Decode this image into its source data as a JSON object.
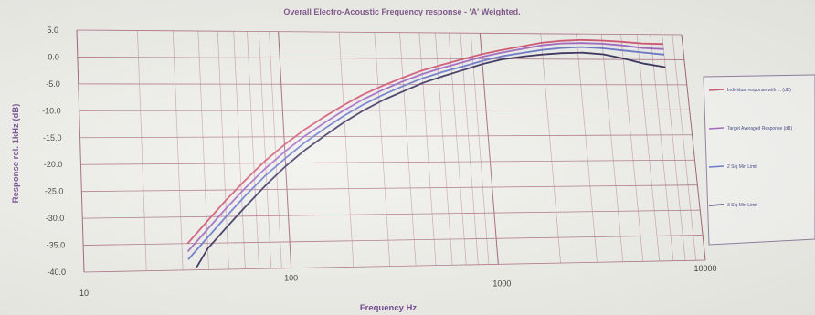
{
  "chart_data": {
    "type": "line",
    "title": "Overall Electro-Acoustic Frequency response - 'A' Weighted.",
    "xlabel": "Frequency Hz",
    "ylabel": "Response rel. 1kHz (dB)",
    "xscale": "log",
    "xlim": [
      10,
      10000
    ],
    "ylim": [
      -40,
      5
    ],
    "x_ticks": [
      "10",
      "100",
      "1000",
      "10000"
    ],
    "y_ticks": [
      "5.0",
      "0.0",
      "-5.0",
      "-10.0",
      "-15.0",
      "-20.0",
      "-25.0",
      "-30.0",
      "-35.0",
      "-40.0"
    ],
    "grid": true,
    "legend_position": "right",
    "series": [
      {
        "name": "Individual response with ... (dB)",
        "color": "#d04a6a",
        "points": [
          [
            32,
            -35
          ],
          [
            40,
            -31
          ],
          [
            50,
            -27
          ],
          [
            63,
            -23.2
          ],
          [
            80,
            -19.5
          ],
          [
            100,
            -16.5
          ],
          [
            125,
            -13.8
          ],
          [
            160,
            -11.2
          ],
          [
            200,
            -9
          ],
          [
            250,
            -7
          ],
          [
            315,
            -5.3
          ],
          [
            400,
            -3.7
          ],
          [
            500,
            -2.3
          ],
          [
            630,
            -1.2
          ],
          [
            800,
            -0.1
          ],
          [
            1000,
            0.9
          ],
          [
            1250,
            1.7
          ],
          [
            1600,
            2.5
          ],
          [
            2000,
            3.2
          ],
          [
            2500,
            3.6
          ],
          [
            3150,
            3.8
          ],
          [
            4000,
            3.7
          ],
          [
            5000,
            3.5
          ],
          [
            6300,
            3.2
          ],
          [
            8000,
            3.1
          ]
        ]
      },
      {
        "name": "Target Averaged Response (dB)",
        "color": "#9a5fbf",
        "points": [
          [
            32,
            -36.5
          ],
          [
            40,
            -32.5
          ],
          [
            50,
            -28.5
          ],
          [
            63,
            -24.6
          ],
          [
            80,
            -20.9
          ],
          [
            100,
            -17.8
          ],
          [
            125,
            -15
          ],
          [
            160,
            -12.3
          ],
          [
            200,
            -10
          ],
          [
            250,
            -7.9
          ],
          [
            315,
            -6.1
          ],
          [
            400,
            -4.4
          ],
          [
            500,
            -3
          ],
          [
            630,
            -1.8
          ],
          [
            800,
            -0.7
          ],
          [
            1000,
            0.4
          ],
          [
            1250,
            1.2
          ],
          [
            1600,
            2
          ],
          [
            2000,
            2.7
          ],
          [
            2500,
            3.1
          ],
          [
            3150,
            3.2
          ],
          [
            4000,
            3.1
          ],
          [
            5000,
            2.8
          ],
          [
            6300,
            2.3
          ],
          [
            8000,
            2.1
          ]
        ]
      },
      {
        "name": "2 Sig Min Limit",
        "color": "#6070c8",
        "points": [
          [
            32,
            -38
          ],
          [
            40,
            -34
          ],
          [
            50,
            -30
          ],
          [
            63,
            -26
          ],
          [
            80,
            -22.2
          ],
          [
            100,
            -19.1
          ],
          [
            125,
            -16.2
          ],
          [
            160,
            -13.4
          ],
          [
            200,
            -11
          ],
          [
            250,
            -8.9
          ],
          [
            315,
            -7
          ],
          [
            400,
            -5.3
          ],
          [
            500,
            -3.8
          ],
          [
            630,
            -2.6
          ],
          [
            800,
            -1.5
          ],
          [
            1000,
            -0.4
          ],
          [
            1250,
            0.5
          ],
          [
            1600,
            1.2
          ],
          [
            2000,
            1.8
          ],
          [
            2500,
            2.2
          ],
          [
            3150,
            2.4
          ],
          [
            4000,
            2.2
          ],
          [
            5000,
            1.8
          ],
          [
            6300,
            1.4
          ],
          [
            8000,
            1
          ]
        ]
      },
      {
        "name": "3 Sig Min Limit",
        "color": "#2b2452",
        "points": [
          [
            35,
            -39.5
          ],
          [
            40,
            -36
          ],
          [
            50,
            -32
          ],
          [
            63,
            -28
          ],
          [
            80,
            -24
          ],
          [
            100,
            -20.6
          ],
          [
            125,
            -17.6
          ],
          [
            160,
            -14.7
          ],
          [
            200,
            -12.2
          ],
          [
            250,
            -10
          ],
          [
            315,
            -8
          ],
          [
            400,
            -6.3
          ],
          [
            500,
            -4.7
          ],
          [
            630,
            -3.4
          ],
          [
            800,
            -2.2
          ],
          [
            1000,
            -1
          ],
          [
            1250,
            -0.1
          ],
          [
            1600,
            0.5
          ],
          [
            2000,
            0.9
          ],
          [
            2500,
            1.2
          ],
          [
            3150,
            1.3
          ],
          [
            4000,
            1
          ],
          [
            5000,
            0.2
          ],
          [
            6300,
            -0.8
          ],
          [
            8000,
            -1.5
          ]
        ]
      }
    ]
  }
}
